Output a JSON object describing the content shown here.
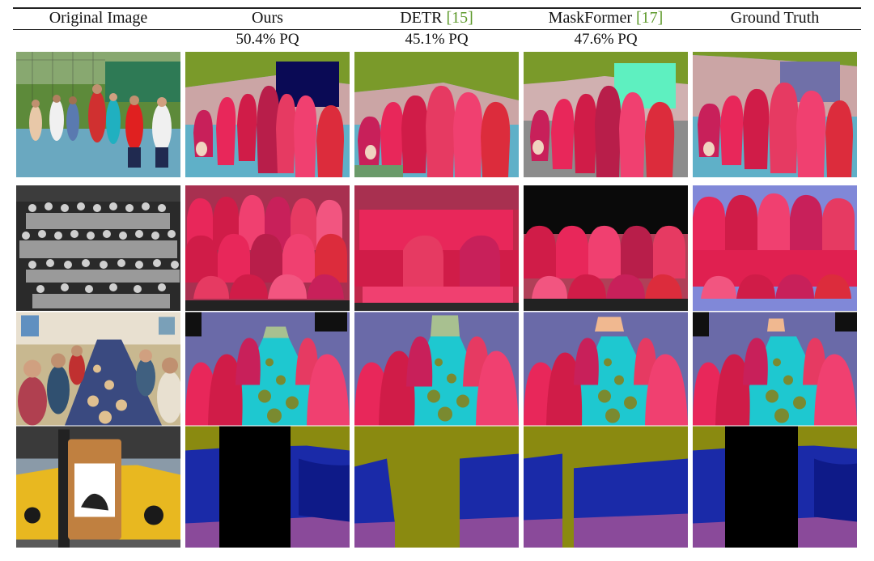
{
  "headers": {
    "original": "Original Image",
    "ours": "Ours",
    "detr": {
      "name": "DETR",
      "ref": "[15]"
    },
    "maskformer": {
      "name": "MaskFormer",
      "ref": "[17]"
    },
    "ground_truth": "Ground Truth"
  },
  "pq": {
    "ours": "50.4% PQ",
    "detr": "45.1% PQ",
    "maskformer": "47.6% PQ"
  },
  "rows": [
    {
      "id": "kids-tennis",
      "desc": "children at tennis court"
    },
    {
      "id": "class-photo",
      "desc": "black and white class photo"
    },
    {
      "id": "dinner-table",
      "desc": "people at dinner table"
    },
    {
      "id": "taxi-sign",
      "desc": "street sign with taxi"
    }
  ],
  "colors": {
    "person_palette": [
      "#e8275a",
      "#d01c48",
      "#f04070",
      "#c8205a",
      "#e63a62",
      "#b81e4a",
      "#f25580",
      "#dc2c3c"
    ],
    "row1": {
      "sky": "#7a9a2a",
      "wall": "#cba5a5",
      "ground": "#5fb0c8",
      "screen": "#0a0a55",
      "screen_mf": "#5ef0c0",
      "screen_gt": "#7070a8"
    },
    "row2": {
      "bg_ours": "#a83050",
      "bg_detr": "#c0284a",
      "bg_mf": "#b04058",
      "bg_gt": "#8088d8"
    },
    "row3": {
      "wall": "#6a6aa8",
      "table": "#1ec8d0",
      "floor": "#3a2a50"
    },
    "row4": {
      "sky": "#8a8a10",
      "car": "#1a2aa8",
      "road": "#8a4a9a",
      "pole": "#000000"
    }
  }
}
